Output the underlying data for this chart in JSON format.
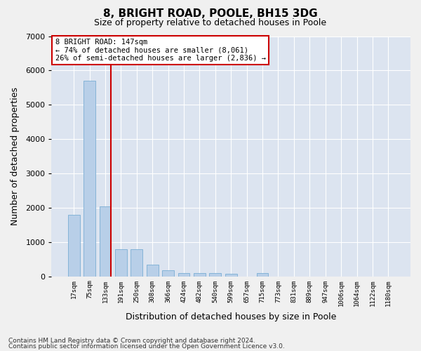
{
  "title": "8, BRIGHT ROAD, POOLE, BH15 3DG",
  "subtitle": "Size of property relative to detached houses in Poole",
  "xlabel": "Distribution of detached houses by size in Poole",
  "ylabel": "Number of detached properties",
  "bar_color": "#b8cfe8",
  "bar_edge_color": "#7aadd4",
  "background_color": "#dce4f0",
  "fig_background": "#f0f0f0",
  "grid_color": "#ffffff",
  "categories": [
    "17sqm",
    "75sqm",
    "133sqm",
    "191sqm",
    "250sqm",
    "308sqm",
    "366sqm",
    "424sqm",
    "482sqm",
    "540sqm",
    "599sqm",
    "657sqm",
    "715sqm",
    "773sqm",
    "831sqm",
    "889sqm",
    "947sqm",
    "1006sqm",
    "1064sqm",
    "1122sqm",
    "1180sqm"
  ],
  "values": [
    1790,
    5700,
    2030,
    800,
    790,
    340,
    185,
    100,
    105,
    105,
    85,
    0,
    100,
    0,
    0,
    0,
    0,
    0,
    0,
    0,
    0
  ],
  "ylim": [
    0,
    7000
  ],
  "yticks": [
    0,
    1000,
    2000,
    3000,
    4000,
    5000,
    6000,
    7000
  ],
  "red_line_x": 2,
  "annotation_line1": "8 BRIGHT ROAD: 147sqm",
  "annotation_line2": "← 74% of detached houses are smaller (8,061)",
  "annotation_line3": "26% of semi-detached houses are larger (2,836) →",
  "annotation_box_color": "#ffffff",
  "annotation_box_edge": "#cc0000",
  "red_line_color": "#cc0000",
  "footnote1": "Contains HM Land Registry data © Crown copyright and database right 2024.",
  "footnote2": "Contains public sector information licensed under the Open Government Licence v3.0."
}
